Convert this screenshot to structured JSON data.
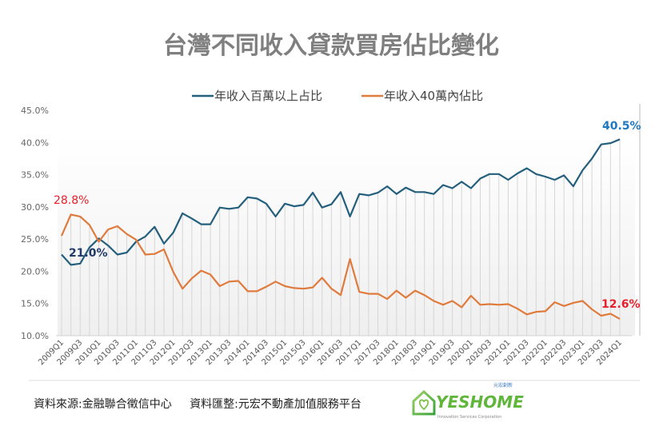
{
  "chart_data": {
    "type": "line",
    "title": "台灣不同收入貸款買房佔比變化",
    "xlabel": "",
    "ylabel": "",
    "ylim": [
      10,
      45
    ],
    "yticks": [
      "10.0%",
      "15.0%",
      "20.0%",
      "25.0%",
      "30.0%",
      "35.0%",
      "40.0%",
      "45.0%"
    ],
    "grid": false,
    "legend": "top",
    "x": [
      "2009Q1",
      "2009Q2",
      "2009Q3",
      "2009Q4",
      "2010Q1",
      "2010Q2",
      "2010Q3",
      "2010Q4",
      "2011Q1",
      "2011Q2",
      "2011Q3",
      "2011Q4",
      "2012Q1",
      "2012Q2",
      "2012Q3",
      "2012Q4",
      "2013Q1",
      "2013Q2",
      "2013Q3",
      "2013Q4",
      "2014Q1",
      "2014Q2",
      "2014Q3",
      "2014Q4",
      "2015Q1",
      "2015Q2",
      "2015Q3",
      "2015Q4",
      "2016Q1",
      "2016Q2",
      "2016Q3",
      "2016Q4",
      "2017Q1",
      "2017Q2",
      "2017Q3",
      "2017Q4",
      "2018Q1",
      "2018Q2",
      "2018Q3",
      "2018Q4",
      "2019Q1",
      "2019Q2",
      "2019Q3",
      "2019Q4",
      "2020Q1",
      "2020Q2",
      "2020Q3",
      "2020Q4",
      "2021Q1",
      "2021Q2",
      "2021Q3",
      "2021Q4",
      "2022Q1",
      "2022Q2",
      "2022Q3",
      "2022Q4",
      "2023Q1",
      "2023Q2",
      "2023Q3",
      "2023Q4",
      "2024Q1"
    ],
    "series": [
      {
        "name": "年收入百萬以上占比",
        "color": "#24607e",
        "values": [
          22.6,
          21.0,
          21.2,
          23.7,
          25.1,
          24.0,
          22.6,
          22.9,
          24.6,
          25.4,
          26.9,
          24.3,
          26.0,
          29.0,
          28.2,
          27.3,
          27.3,
          29.9,
          29.7,
          29.9,
          31.5,
          31.3,
          30.5,
          28.5,
          30.5,
          30.1,
          30.3,
          32.2,
          29.9,
          30.4,
          32.3,
          28.5,
          32.0,
          31.8,
          32.2,
          33.2,
          32.0,
          33.0,
          32.3,
          32.3,
          32.0,
          33.4,
          32.9,
          33.9,
          32.9,
          34.4,
          35.1,
          35.1,
          34.2,
          35.2,
          36.0,
          35.1,
          34.7,
          34.2,
          34.9,
          33.2,
          35.7,
          37.5,
          39.7,
          39.9,
          40.5
        ]
      },
      {
        "name": "年收入40萬內佔比",
        "color": "#e07b3e",
        "values": [
          25.5,
          28.8,
          28.5,
          27.2,
          24.6,
          26.5,
          27.0,
          25.8,
          24.9,
          22.6,
          22.7,
          23.4,
          19.9,
          17.3,
          18.9,
          20.1,
          19.5,
          17.7,
          18.4,
          18.5,
          16.9,
          16.9,
          17.6,
          18.4,
          17.7,
          17.4,
          17.3,
          17.5,
          19.0,
          17.3,
          16.3,
          21.9,
          16.8,
          16.5,
          16.5,
          15.7,
          17.0,
          15.9,
          17.0,
          16.3,
          15.4,
          14.8,
          15.4,
          14.4,
          16.2,
          14.8,
          14.9,
          14.8,
          14.9,
          14.2,
          13.3,
          13.7,
          13.8,
          15.2,
          14.6,
          15.1,
          15.4,
          14.1,
          13.1,
          13.4,
          12.6
        ]
      }
    ],
    "annotations": [
      {
        "text": "28.8%",
        "color": "#e8202a"
      },
      {
        "text": "21.0%",
        "color": "#1f3a6a"
      },
      {
        "text": "40.5%",
        "color": "#1e78c0"
      },
      {
        "text": "12.6%",
        "color": "#e8202a"
      }
    ]
  },
  "footer": {
    "source": "資料來源:金融聯合徵信中心",
    "compiled": "資料匯整:元宏不動產加值服務平台",
    "logo_text": "YESHOME",
    "logo_sub": "Innovation Services Corporation",
    "logo_cn": "元宏創新"
  }
}
